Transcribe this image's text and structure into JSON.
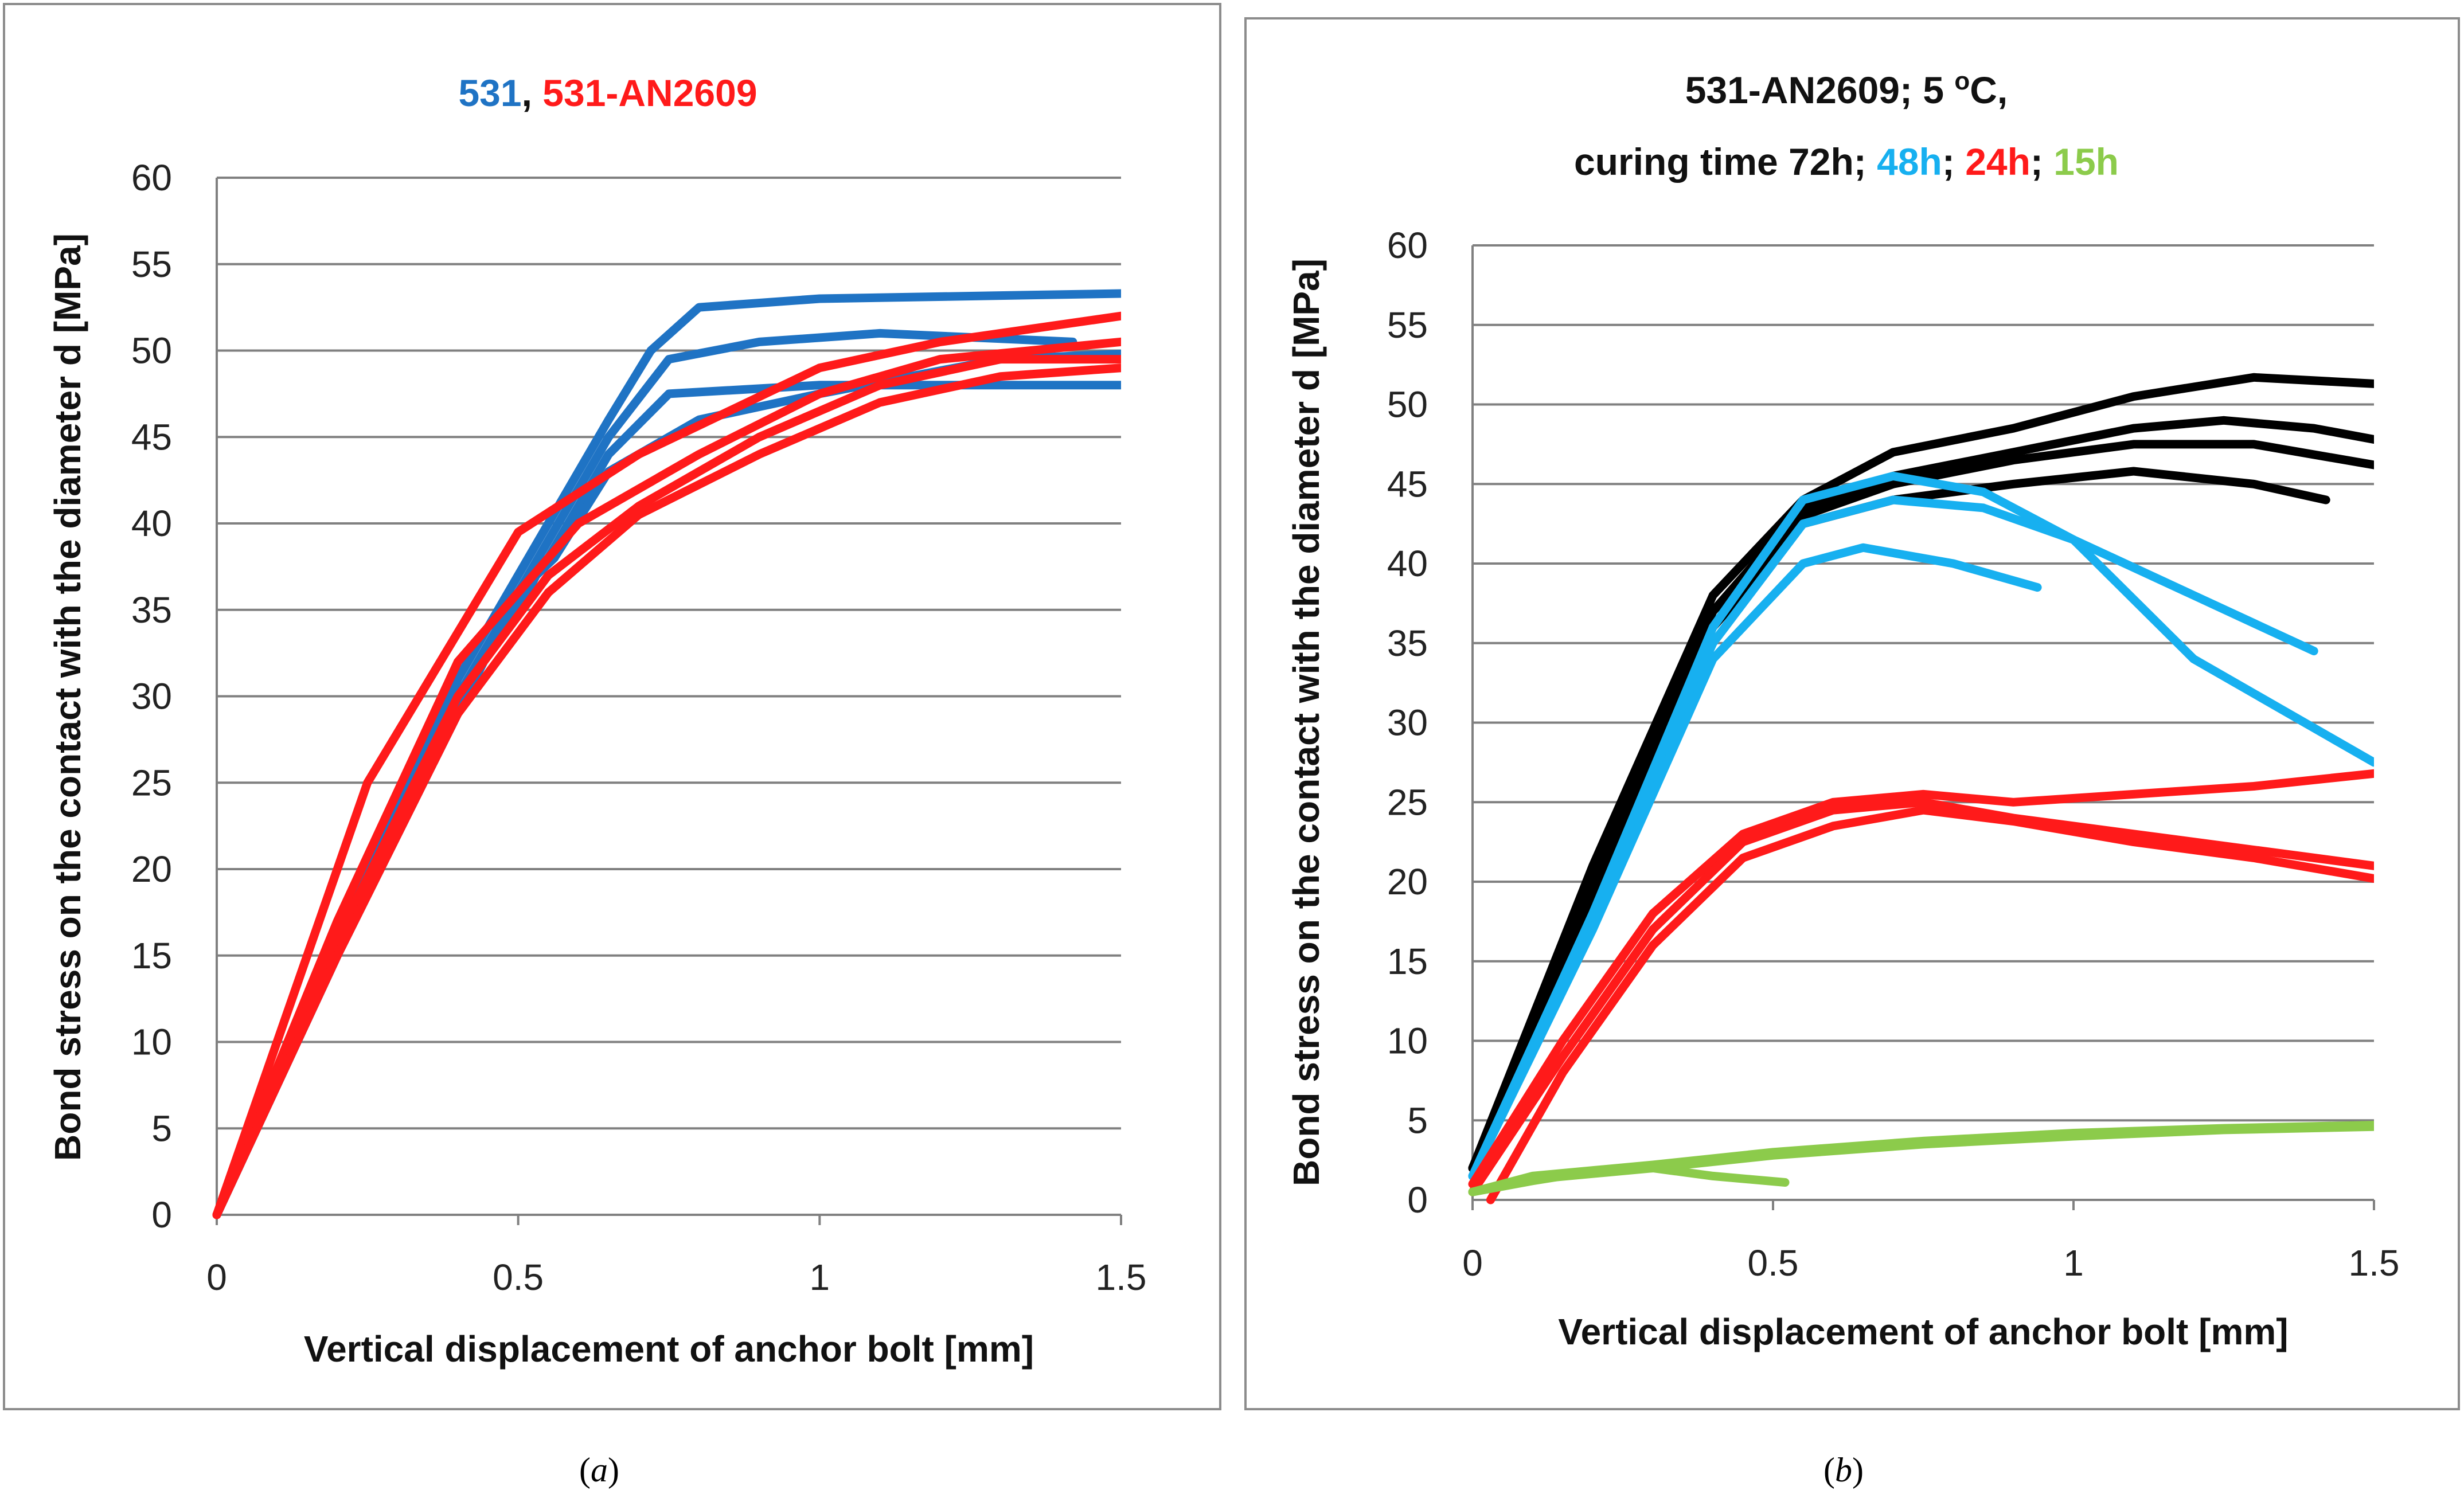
{
  "chart_data": [
    {
      "panel_label": "(a)",
      "caption_letter": "a",
      "type": "line",
      "title_parts": [
        {
          "text": "531",
          "color": "#1F73C4"
        },
        {
          "text": ", ",
          "color": "#111111"
        },
        {
          "text": "531-AN2609",
          "color": "#FF1A1A"
        }
      ],
      "xlabel": "Vertical displacement of anchor bolt [mm]",
      "ylabel": "Bond stress on the contact with the diameter d [MPa]",
      "xlim": [
        0,
        1.5
      ],
      "ylim": [
        0,
        60
      ],
      "xticks": [
        {
          "v": 0,
          "label": "0"
        },
        {
          "v": 0.5,
          "label": "0.5"
        },
        {
          "v": 1,
          "label": "1"
        },
        {
          "v": 1.5,
          "label": "1.5"
        }
      ],
      "yticks": [
        0,
        5,
        10,
        15,
        20,
        25,
        30,
        35,
        40,
        45,
        50,
        55,
        60
      ],
      "grid": "horizontal",
      "series": [
        {
          "group": "531",
          "color": "#1F73C4",
          "points": [
            [
              0,
              0
            ],
            [
              0.2,
              16
            ],
            [
              0.4,
              31
            ],
            [
              0.55,
              40
            ],
            [
              0.65,
              46
            ],
            [
              0.72,
              50
            ],
            [
              0.8,
              52.5
            ],
            [
              1.0,
              53
            ],
            [
              1.5,
              53.3
            ]
          ]
        },
        {
          "group": "531",
          "color": "#1F73C4",
          "points": [
            [
              0,
              0
            ],
            [
              0.2,
              16
            ],
            [
              0.4,
              30
            ],
            [
              0.55,
              39
            ],
            [
              0.65,
              45
            ],
            [
              0.75,
              49.5
            ],
            [
              0.9,
              50.5
            ],
            [
              1.1,
              51
            ],
            [
              1.42,
              50.5
            ]
          ]
        },
        {
          "group": "531",
          "color": "#1F73C4",
          "points": [
            [
              0,
              0
            ],
            [
              0.2,
              15
            ],
            [
              0.4,
              29
            ],
            [
              0.5,
              36
            ],
            [
              0.55,
              38
            ],
            [
              0.65,
              44
            ],
            [
              0.75,
              47.5
            ],
            [
              1.0,
              48
            ],
            [
              1.5,
              48
            ]
          ]
        },
        {
          "group": "531",
          "color": "#1F73C4",
          "points": [
            [
              0,
              0
            ],
            [
              0.2,
              15
            ],
            [
              0.4,
              30
            ],
            [
              0.5,
              35
            ],
            [
              0.53,
              37
            ],
            [
              0.56,
              38
            ],
            [
              0.65,
              43
            ],
            [
              0.8,
              46
            ],
            [
              1.0,
              47.5
            ],
            [
              1.3,
              49.5
            ],
            [
              1.5,
              49.8
            ]
          ]
        },
        {
          "group": "531-AN2609",
          "color": "#FF1A1A",
          "points": [
            [
              0,
              0
            ],
            [
              0.25,
              25
            ],
            [
              0.5,
              39.5
            ],
            [
              0.7,
              44
            ],
            [
              1.0,
              49
            ],
            [
              1.2,
              50.5
            ],
            [
              1.5,
              52
            ]
          ]
        },
        {
          "group": "531-AN2609",
          "color": "#FF1A1A",
          "points": [
            [
              0,
              0
            ],
            [
              0.2,
              17
            ],
            [
              0.4,
              32
            ],
            [
              0.6,
              40
            ],
            [
              0.8,
              44
            ],
            [
              1.0,
              47.5
            ],
            [
              1.2,
              49.5
            ],
            [
              1.5,
              50.5
            ]
          ]
        },
        {
          "group": "531-AN2609",
          "color": "#FF1A1A",
          "points": [
            [
              0,
              0
            ],
            [
              0.2,
              16
            ],
            [
              0.4,
              30
            ],
            [
              0.55,
              37
            ],
            [
              0.7,
              41
            ],
            [
              0.9,
              45
            ],
            [
              1.1,
              48
            ],
            [
              1.3,
              49.5
            ],
            [
              1.5,
              49.5
            ]
          ]
        },
        {
          "group": "531-AN2609",
          "color": "#FF1A1A",
          "points": [
            [
              0,
              0
            ],
            [
              0.2,
              15
            ],
            [
              0.4,
              29
            ],
            [
              0.55,
              36
            ],
            [
              0.7,
              40.5
            ],
            [
              0.9,
              44
            ],
            [
              1.1,
              47
            ],
            [
              1.3,
              48.5
            ],
            [
              1.5,
              49
            ]
          ]
        }
      ]
    },
    {
      "panel_label": "(b)",
      "caption_letter": "b",
      "type": "line",
      "title_lines": [
        [
          {
            "text": "531-AN2609; 5 ",
            "color": "#111111"
          },
          {
            "text": "o",
            "color": "#111111",
            "sup": true
          },
          {
            "text": "C,",
            "color": "#111111"
          }
        ],
        [
          {
            "text": "curing time 72h; ",
            "color": "#111111"
          },
          {
            "text": "48h",
            "color": "#17B0F0"
          },
          {
            "text": ";   ",
            "color": "#111111"
          },
          {
            "text": "24h",
            "color": "#FF1A1A"
          },
          {
            "text": "; ",
            "color": "#111111"
          },
          {
            "text": "15h",
            "color": "#8CCB4B"
          }
        ]
      ],
      "xlabel": "Vertical displacement of anchor bolt [mm]",
      "ylabel": "Bond stress on the contact with the diameter d [MPa]",
      "xlim": [
        0,
        1.5
      ],
      "ylim": [
        0,
        60
      ],
      "xticks": [
        {
          "v": 0,
          "label": "0"
        },
        {
          "v": 0.5,
          "label": "0.5"
        },
        {
          "v": 1,
          "label": "1"
        },
        {
          "v": 1.5,
          "label": "1.5"
        }
      ],
      "yticks": [
        0,
        5,
        10,
        15,
        20,
        25,
        30,
        35,
        40,
        45,
        50,
        55,
        60
      ],
      "grid": "horizontal",
      "series": [
        {
          "group": "72h",
          "color": "#000000",
          "points": [
            [
              0,
              2
            ],
            [
              0.2,
              21
            ],
            [
              0.4,
              38
            ],
            [
              0.55,
              44
            ],
            [
              0.7,
              47
            ],
            [
              0.9,
              48.5
            ],
            [
              1.1,
              50.5
            ],
            [
              1.3,
              51.7
            ],
            [
              1.5,
              51.3
            ]
          ]
        },
        {
          "group": "72h",
          "color": "#000000",
          "points": [
            [
              0,
              2
            ],
            [
              0.2,
              20
            ],
            [
              0.4,
              37
            ],
            [
              0.55,
              43.5
            ],
            [
              0.7,
              45.5
            ],
            [
              0.9,
              47
            ],
            [
              1.1,
              48.5
            ],
            [
              1.25,
              49
            ],
            [
              1.4,
              48.5
            ],
            [
              1.5,
              47.8
            ]
          ]
        },
        {
          "group": "72h",
          "color": "#000000",
          "points": [
            [
              0,
              2
            ],
            [
              0.2,
              20
            ],
            [
              0.4,
              37
            ],
            [
              0.55,
              43
            ],
            [
              0.7,
              45
            ],
            [
              0.9,
              46.5
            ],
            [
              1.1,
              47.5
            ],
            [
              1.3,
              47.5
            ],
            [
              1.5,
              46.2
            ]
          ]
        },
        {
          "group": "72h",
          "color": "#000000",
          "points": [
            [
              0,
              2
            ],
            [
              0.2,
              19
            ],
            [
              0.4,
              36
            ],
            [
              0.55,
              42.5
            ],
            [
              0.7,
              44
            ],
            [
              0.9,
              45
            ],
            [
              1.1,
              45.8
            ],
            [
              1.3,
              45
            ],
            [
              1.42,
              44
            ]
          ]
        },
        {
          "group": "48h",
          "color": "#17B0F0",
          "points": [
            [
              0,
              1.5
            ],
            [
              0.2,
              18
            ],
            [
              0.4,
              36
            ],
            [
              0.55,
              44
            ],
            [
              0.7,
              45.5
            ],
            [
              0.85,
              44.5
            ],
            [
              1.0,
              41.5
            ],
            [
              1.2,
              34
            ],
            [
              1.5,
              27.5
            ]
          ]
        },
        {
          "group": "48h",
          "color": "#17B0F0",
          "points": [
            [
              0,
              1.5
            ],
            [
              0.2,
              18
            ],
            [
              0.4,
              35
            ],
            [
              0.55,
              42.5
            ],
            [
              0.7,
              44
            ],
            [
              0.85,
              43.5
            ],
            [
              1.0,
              41.5
            ],
            [
              1.2,
              38
            ],
            [
              1.4,
              34.5
            ]
          ]
        },
        {
          "group": "48h",
          "color": "#17B0F0",
          "points": [
            [
              0,
              1.5
            ],
            [
              0.2,
              17
            ],
            [
              0.4,
              34
            ],
            [
              0.55,
              40
            ],
            [
              0.65,
              41
            ],
            [
              0.8,
              40
            ],
            [
              0.94,
              38.5
            ]
          ]
        },
        {
          "group": "24h",
          "color": "#FF1A1A",
          "points": [
            [
              0,
              1
            ],
            [
              0.15,
              10
            ],
            [
              0.3,
              18
            ],
            [
              0.45,
              23
            ],
            [
              0.6,
              25
            ],
            [
              0.75,
              25.5
            ],
            [
              0.9,
              25
            ],
            [
              1.1,
              25.5
            ],
            [
              1.3,
              26
            ],
            [
              1.5,
              26.8
            ]
          ]
        },
        {
          "group": "24h",
          "color": "#FF1A1A",
          "points": [
            [
              0,
              0.5
            ],
            [
              0.15,
              9
            ],
            [
              0.3,
              17
            ],
            [
              0.45,
              22.5
            ],
            [
              0.6,
              24.5
            ],
            [
              0.75,
              25
            ],
            [
              0.9,
              24
            ],
            [
              1.1,
              23
            ],
            [
              1.3,
              22
            ],
            [
              1.5,
              21
            ]
          ]
        },
        {
          "group": "24h",
          "color": "#FF1A1A",
          "points": [
            [
              0.03,
              0
            ],
            [
              0.15,
              8
            ],
            [
              0.3,
              16
            ],
            [
              0.45,
              21.5
            ],
            [
              0.6,
              23.5
            ],
            [
              0.75,
              24.5
            ],
            [
              0.9,
              23.8
            ],
            [
              1.1,
              22.5
            ],
            [
              1.3,
              21.5
            ],
            [
              1.5,
              20.2
            ]
          ]
        },
        {
          "group": "15h",
          "color": "#8CCB4B",
          "points": [
            [
              0,
              0.5
            ],
            [
              0.1,
              1.5
            ],
            [
              0.3,
              2.2
            ],
            [
              0.5,
              3
            ],
            [
              0.75,
              3.7
            ],
            [
              1.0,
              4.2
            ],
            [
              1.25,
              4.5
            ],
            [
              1.5,
              4.7
            ]
          ]
        },
        {
          "group": "15h",
          "color": "#8CCB4B",
          "points": [
            [
              0,
              0.5
            ],
            [
              0.1,
              1.3
            ],
            [
              0.3,
              2
            ],
            [
              0.5,
              2.8
            ],
            [
              0.75,
              3.5
            ],
            [
              1.0,
              4
            ],
            [
              1.25,
              4.4
            ],
            [
              1.5,
              4.6
            ]
          ]
        },
        {
          "group": "15h",
          "color": "#8CCB4B",
          "points": [
            [
              0,
              0.5
            ],
            [
              0.1,
              1.2
            ],
            [
              0.2,
              1.8
            ],
            [
              0.3,
              2
            ],
            [
              0.4,
              1.5
            ],
            [
              0.52,
              1.1
            ]
          ]
        }
      ]
    }
  ]
}
